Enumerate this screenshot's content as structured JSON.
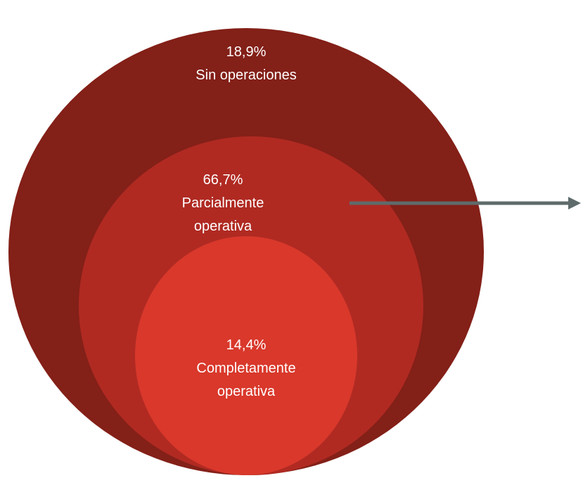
{
  "nodes": [
    {
      "value_label": "18,9%",
      "label": "Sin operaciones"
    },
    {
      "value_label": "66,7%",
      "label": "Parcialmente operativa"
    },
    {
      "value_label": "14,4%",
      "label": "Completamente operativa"
    }
  ]
}
